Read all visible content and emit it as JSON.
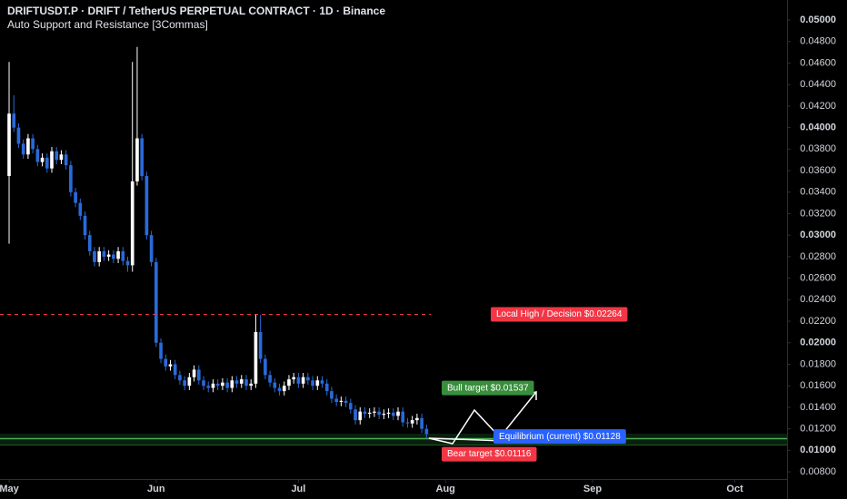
{
  "chart_data": {
    "type": "candlestick",
    "title": "DRIFTUSDT.P · DRIFT / TetherUS PERPETUAL CONTRACT · 1D · Binance",
    "subtitle": "Auto Support and Resistance [3Commas]",
    "up_color": "#ffffff",
    "down_color": "#2a6ad8",
    "xlim": [
      -1.92,
      164
    ],
    "xticks": [
      {
        "value": 0,
        "label": "May"
      },
      {
        "value": 31,
        "label": "Jun"
      },
      {
        "value": 61,
        "label": "Jul"
      },
      {
        "value": 92,
        "label": "Aug"
      },
      {
        "value": 123,
        "label": "Sep"
      },
      {
        "value": 153,
        "label": "Oct"
      }
    ],
    "ylim": [
      0.00733,
      0.05186
    ],
    "yticks": [
      {
        "value": 0.05,
        "label": "0.05000"
      },
      {
        "value": 0.048,
        "label": "0.04800"
      },
      {
        "value": 0.046,
        "label": "0.04600"
      },
      {
        "value": 0.044,
        "label": "0.04400"
      },
      {
        "value": 0.042,
        "label": "0.04200"
      },
      {
        "value": 0.04,
        "label": "0.04000"
      },
      {
        "value": 0.038,
        "label": "0.03800"
      },
      {
        "value": 0.036,
        "label": "0.03600"
      },
      {
        "value": 0.034,
        "label": "0.03400"
      },
      {
        "value": 0.032,
        "label": "0.03200"
      },
      {
        "value": 0.03,
        "label": "0.03000"
      },
      {
        "value": 0.028,
        "label": "0.02800"
      },
      {
        "value": 0.026,
        "label": "0.02600"
      },
      {
        "value": 0.024,
        "label": "0.02400"
      },
      {
        "value": 0.022,
        "label": "0.02200"
      },
      {
        "value": 0.02,
        "label": "0.02000"
      },
      {
        "value": 0.018,
        "label": "0.01800"
      },
      {
        "value": 0.016,
        "label": "0.01600"
      },
      {
        "value": 0.014,
        "label": "0.01400"
      },
      {
        "value": 0.012,
        "label": "0.01200"
      },
      {
        "value": 0.01,
        "label": "0.01000"
      },
      {
        "value": 0.008,
        "label": "0.00800"
      }
    ],
    "x": [
      0,
      1,
      2,
      3,
      4,
      5,
      6,
      7,
      8,
      9,
      10,
      11,
      12,
      13,
      14,
      15,
      16,
      17,
      18,
      19,
      20,
      21,
      22,
      23,
      24,
      25,
      26,
      27,
      28,
      29,
      30,
      31,
      32,
      33,
      34,
      35,
      36,
      37,
      38,
      39,
      40,
      41,
      42,
      43,
      44,
      45,
      46,
      47,
      48,
      49,
      50,
      51,
      52,
      53,
      54,
      55,
      56,
      57,
      58,
      59,
      60,
      61,
      62,
      63,
      64,
      65,
      66,
      67,
      68,
      69,
      70,
      71,
      72,
      73,
      74,
      75,
      76,
      77,
      78,
      79,
      80,
      81,
      82,
      83,
      84,
      85,
      86,
      87,
      88
    ],
    "open": [
      0.0355,
      0.0413,
      0.04,
      0.0385,
      0.0375,
      0.039,
      0.038,
      0.0368,
      0.0372,
      0.0362,
      0.0378,
      0.037,
      0.0375,
      0.0365,
      0.034,
      0.033,
      0.0318,
      0.03,
      0.0285,
      0.0275,
      0.0285,
      0.028,
      0.0282,
      0.0278,
      0.0285,
      0.0276,
      0.0272,
      0.035,
      0.039,
      0.0355,
      0.03,
      0.0275,
      0.02,
      0.0185,
      0.0178,
      0.018,
      0.017,
      0.0165,
      0.016,
      0.0168,
      0.0175,
      0.0165,
      0.016,
      0.0158,
      0.0162,
      0.016,
      0.0163,
      0.0158,
      0.0165,
      0.0162,
      0.0166,
      0.016,
      0.0162,
      0.021,
      0.0185,
      0.017,
      0.0163,
      0.0158,
      0.0155,
      0.016,
      0.0166,
      0.0168,
      0.0162,
      0.0168,
      0.0165,
      0.016,
      0.0165,
      0.0162,
      0.0155,
      0.0148,
      0.0145,
      0.0146,
      0.0144,
      0.0138,
      0.0128,
      0.0136,
      0.0134,
      0.0135,
      0.0136,
      0.0133,
      0.0134,
      0.0135,
      0.0132,
      0.0136,
      0.0126,
      0.0125,
      0.0128,
      0.013,
      0.012
    ],
    "high": [
      0.0461,
      0.043,
      0.0404,
      0.0389,
      0.0394,
      0.0394,
      0.0384,
      0.0376,
      0.0376,
      0.0382,
      0.0382,
      0.0379,
      0.0379,
      0.0369,
      0.0344,
      0.0334,
      0.0322,
      0.0304,
      0.0289,
      0.0289,
      0.0289,
      0.0286,
      0.0286,
      0.0289,
      0.0289,
      0.028,
      0.0461,
      0.0475,
      0.0394,
      0.0359,
      0.0304,
      0.0279,
      0.0204,
      0.0189,
      0.0184,
      0.0184,
      0.0174,
      0.0169,
      0.0172,
      0.0179,
      0.0179,
      0.0169,
      0.0164,
      0.0166,
      0.0166,
      0.0167,
      0.0167,
      0.0169,
      0.0169,
      0.017,
      0.017,
      0.0166,
      0.0226,
      0.0226,
      0.0189,
      0.0174,
      0.0167,
      0.0162,
      0.0164,
      0.017,
      0.0172,
      0.0172,
      0.0172,
      0.0172,
      0.0169,
      0.0169,
      0.0169,
      0.0166,
      0.0159,
      0.0152,
      0.015,
      0.015,
      0.0148,
      0.0142,
      0.014,
      0.014,
      0.0139,
      0.014,
      0.014,
      0.0138,
      0.0139,
      0.0139,
      0.014,
      0.014,
      0.013,
      0.0132,
      0.0134,
      0.0134,
      0.0124
    ],
    "low": [
      0.0292,
      0.0396,
      0.0381,
      0.0371,
      0.0371,
      0.0376,
      0.0364,
      0.0364,
      0.0358,
      0.0358,
      0.0366,
      0.0366,
      0.0361,
      0.0336,
      0.0326,
      0.0314,
      0.0296,
      0.0281,
      0.0271,
      0.0271,
      0.0276,
      0.0276,
      0.0274,
      0.0274,
      0.0272,
      0.0266,
      0.0266,
      0.0346,
      0.0351,
      0.0296,
      0.0271,
      0.0196,
      0.0181,
      0.0174,
      0.0174,
      0.0166,
      0.0161,
      0.0156,
      0.0156,
      0.0164,
      0.0161,
      0.0156,
      0.0154,
      0.0154,
      0.0156,
      0.0156,
      0.0154,
      0.0154,
      0.0158,
      0.0158,
      0.0156,
      0.0156,
      0.0158,
      0.0181,
      0.0166,
      0.0159,
      0.0154,
      0.0151,
      0.0151,
      0.0156,
      0.0162,
      0.0158,
      0.0158,
      0.0161,
      0.0156,
      0.0156,
      0.0158,
      0.0151,
      0.0144,
      0.0141,
      0.0141,
      0.014,
      0.0134,
      0.0124,
      0.0124,
      0.013,
      0.013,
      0.0131,
      0.0129,
      0.0129,
      0.013,
      0.0128,
      0.0128,
      0.0122,
      0.0121,
      0.0121,
      0.0124,
      0.0116,
      0.0111
    ],
    "close": [
      0.0413,
      0.04,
      0.0385,
      0.0375,
      0.039,
      0.038,
      0.0368,
      0.0372,
      0.0362,
      0.0378,
      0.037,
      0.0375,
      0.0365,
      0.034,
      0.033,
      0.0318,
      0.03,
      0.0285,
      0.0275,
      0.0285,
      0.028,
      0.0282,
      0.0278,
      0.0285,
      0.0276,
      0.0272,
      0.035,
      0.039,
      0.0355,
      0.03,
      0.0275,
      0.02,
      0.0185,
      0.0178,
      0.018,
      0.017,
      0.0165,
      0.016,
      0.0168,
      0.0175,
      0.0165,
      0.016,
      0.0158,
      0.0162,
      0.016,
      0.0163,
      0.0158,
      0.0165,
      0.0162,
      0.0166,
      0.016,
      0.0162,
      0.021,
      0.0185,
      0.017,
      0.0163,
      0.0158,
      0.0155,
      0.016,
      0.0166,
      0.0168,
      0.0162,
      0.0168,
      0.0165,
      0.016,
      0.0165,
      0.0162,
      0.0155,
      0.0148,
      0.0145,
      0.0146,
      0.0144,
      0.0138,
      0.0128,
      0.0136,
      0.0134,
      0.0135,
      0.0136,
      0.0133,
      0.0134,
      0.0135,
      0.0132,
      0.0136,
      0.0126,
      0.0125,
      0.0128,
      0.013,
      0.012,
      0.0115
    ],
    "levels": [
      {
        "value": 0.02264,
        "label": "Local High / Decision $0.02264",
        "color": "#f23645",
        "line": true
      },
      {
        "value": 0.01537,
        "label": "Bull target $0.01537",
        "color": "#388e3c",
        "line": false
      },
      {
        "value": 0.01128,
        "label": "Equilibrium (current) $0.01128",
        "color": "#2962ff",
        "line": false
      },
      {
        "value": 0.01116,
        "label": "Bear target $0.01116",
        "color": "#f23645",
        "line": false
      }
    ]
  }
}
